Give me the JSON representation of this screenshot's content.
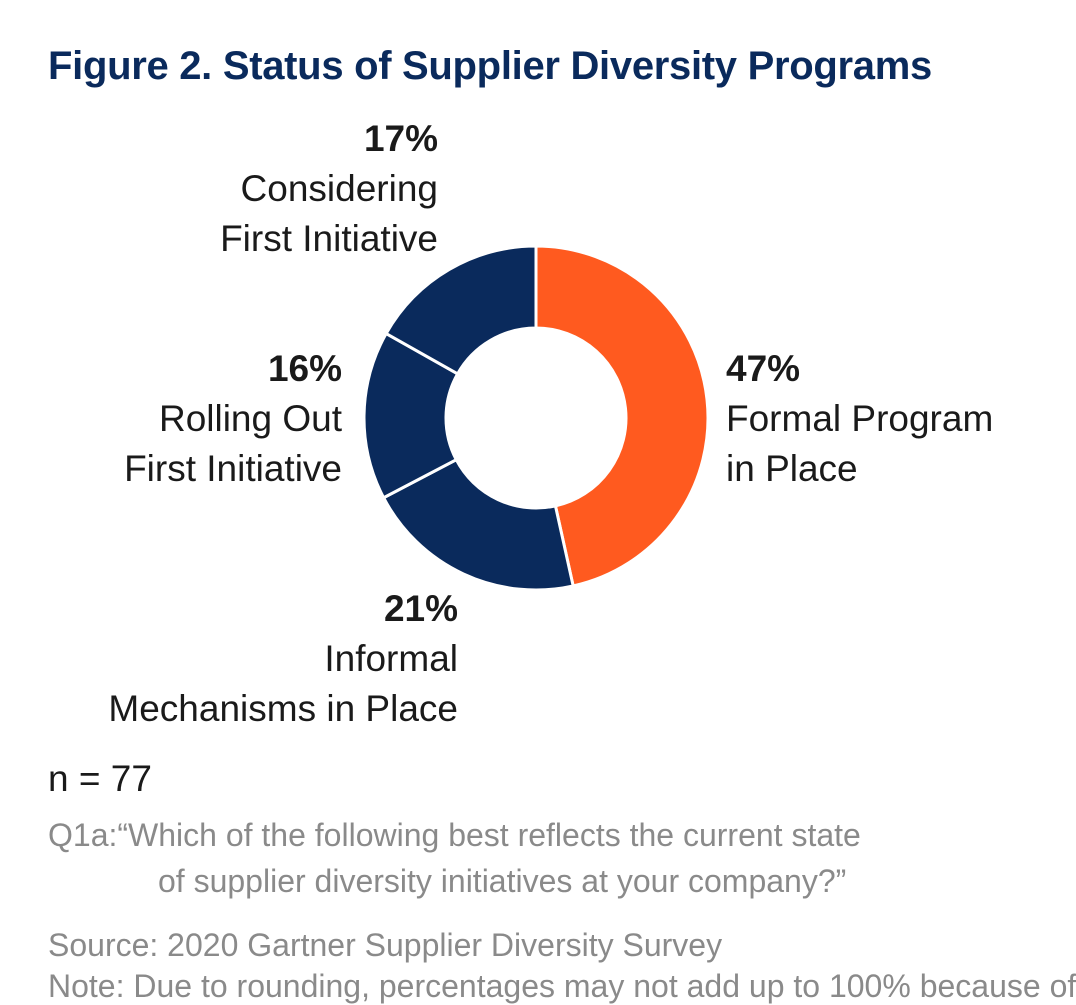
{
  "title": "Figure 2. Status of Supplier Diversity Programs",
  "chart_data": {
    "type": "pie",
    "donut": true,
    "slices": [
      {
        "label_line1": "Formal Program",
        "label_line2": "in Place",
        "value": 47,
        "value_label": "47%",
        "color": "#ff5a1f"
      },
      {
        "label_line1": "Informal",
        "label_line2": "Mechanisms in Place",
        "value": 21,
        "value_label": "21%",
        "color": "#0a2a5c"
      },
      {
        "label_line1": "Rolling Out",
        "label_line2": "First Initiative",
        "value": 16,
        "value_label": "16%",
        "color": "#0a2a5c"
      },
      {
        "label_line1": "Considering",
        "label_line2": "First Initiative",
        "value": 17,
        "value_label": "17%",
        "color": "#0a2a5c"
      }
    ]
  },
  "notes": {
    "n": "n = 77",
    "question_line1": "Q1a:“Which of the following best reflects the current state",
    "question_line2": "of supplier diversity initiatives at your company?”",
    "source": "Source:  2020 Gartner Supplier Diversity Survey",
    "cut_line": "Note: Due to rounding, percentages may not add up to 100% because of"
  }
}
